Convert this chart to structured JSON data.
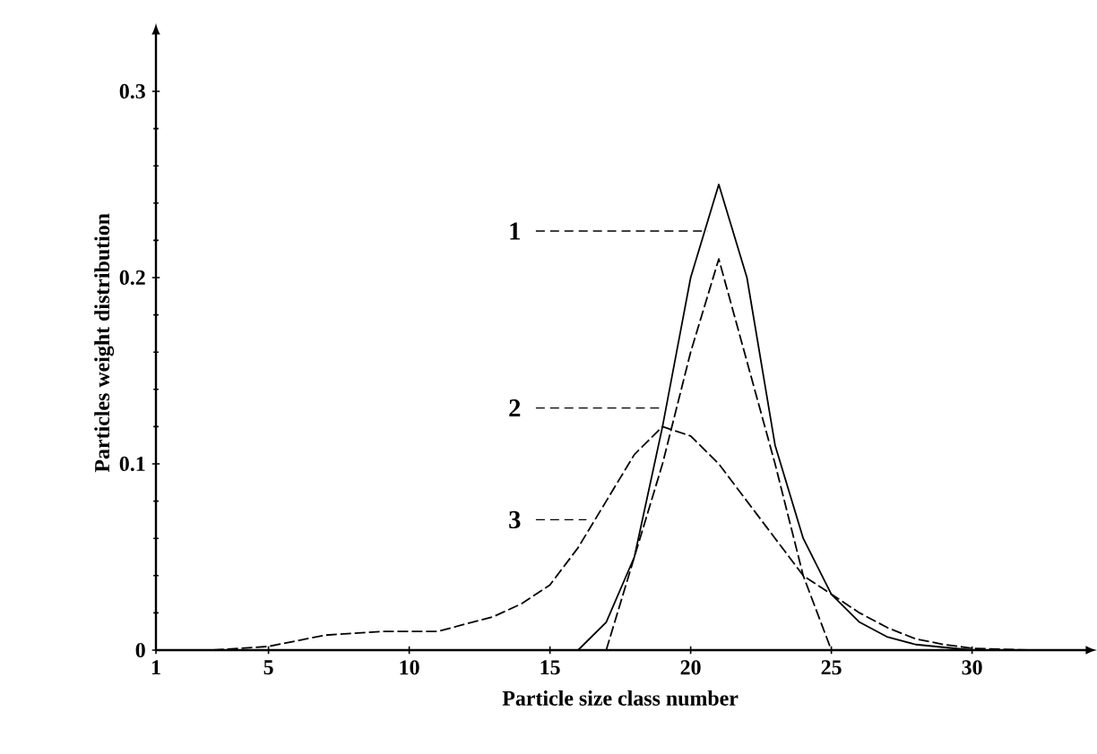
{
  "chart_data": {
    "type": "line",
    "xlabel": "Particle size class number",
    "ylabel": "Particles weight distribution",
    "xlim": [
      1,
      34
    ],
    "ylim": [
      0,
      0.33
    ],
    "xticks": [
      1,
      5,
      10,
      15,
      20,
      25,
      30
    ],
    "yticks": [
      0,
      0.1,
      0.2,
      0.3
    ],
    "grid": false,
    "legend": "center",
    "series": [
      {
        "name": "1",
        "color": "#000000",
        "line_style": "solid",
        "x": [
          16,
          17,
          18,
          19,
          20,
          21,
          22,
          23,
          24,
          25,
          26,
          27,
          28,
          30,
          32
        ],
        "values": [
          0,
          0.015,
          0.05,
          0.12,
          0.2,
          0.25,
          0.2,
          0.11,
          0.06,
          0.03,
          0.015,
          0.007,
          0.003,
          0,
          0
        ]
      },
      {
        "name": "2",
        "color": "#000000",
        "line_style": "dashed",
        "x": [
          17,
          18,
          19,
          20,
          21,
          22,
          23,
          24,
          25
        ],
        "values": [
          0,
          0.05,
          0.1,
          0.16,
          0.21,
          0.155,
          0.1,
          0.04,
          0
        ]
      },
      {
        "name": "3",
        "color": "#000000",
        "line_style": "dashed",
        "x": [
          1,
          3,
          5,
          7,
          9,
          11,
          13,
          14,
          15,
          16,
          17,
          18,
          19,
          20,
          21,
          22,
          23,
          24,
          25,
          26,
          27,
          28,
          29,
          30,
          32
        ],
        "values": [
          0,
          0,
          0.002,
          0.008,
          0.01,
          0.01,
          0.018,
          0.025,
          0.035,
          0.055,
          0.08,
          0.105,
          0.12,
          0.115,
          0.1,
          0.08,
          0.06,
          0.04,
          0.03,
          0.02,
          0.012,
          0.006,
          0.003,
          0.001,
          0
        ]
      }
    ]
  }
}
